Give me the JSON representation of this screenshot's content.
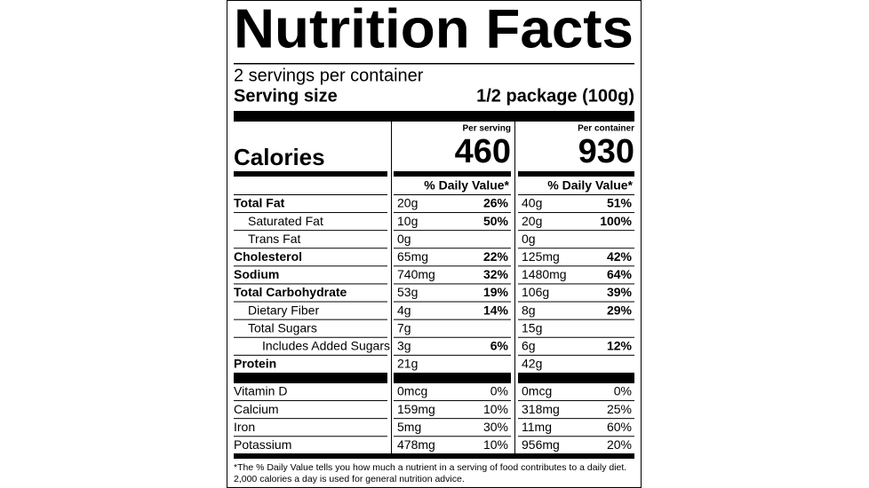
{
  "title": "Nutrition Facts",
  "servings": "2 servings per container",
  "serving_size": {
    "label": "Serving size",
    "value": "1/2 package (100g)"
  },
  "calories": {
    "label": "Calories",
    "columns": [
      {
        "header": "Per serving",
        "value": "460"
      },
      {
        "header": "Per container",
        "value": "930"
      }
    ]
  },
  "dv_header": "% Daily Value*",
  "nutrients": [
    {
      "name": "Total Fat",
      "bold": true,
      "indent": 0,
      "columns": [
        [
          "20g",
          "26%"
        ],
        [
          "40g",
          "51%"
        ]
      ]
    },
    {
      "name": "Saturated Fat",
      "bold": false,
      "indent": 1,
      "columns": [
        [
          "10g",
          "50%"
        ],
        [
          "20g",
          "100%"
        ]
      ]
    },
    {
      "name": "Trans Fat",
      "bold": false,
      "indent": 1,
      "columns": [
        [
          "0g"
        ],
        [
          "0g"
        ]
      ]
    },
    {
      "name": "Cholesterol",
      "bold": true,
      "indent": 0,
      "columns": [
        [
          "65mg",
          "22%"
        ],
        [
          "125mg",
          "42%"
        ]
      ]
    },
    {
      "name": "Sodium",
      "bold": true,
      "indent": 0,
      "columns": [
        [
          "740mg",
          "32%"
        ],
        [
          "1480mg",
          "64%"
        ]
      ]
    },
    {
      "name": "Total Carbohydrate",
      "bold": true,
      "indent": 0,
      "columns": [
        [
          "53g",
          "19%"
        ],
        [
          "106g",
          "39%"
        ]
      ]
    },
    {
      "name": "Dietary Fiber",
      "bold": false,
      "indent": 1,
      "columns": [
        [
          "4g",
          "14%"
        ],
        [
          "8g",
          "29%"
        ]
      ]
    },
    {
      "name": "Total Sugars",
      "bold": false,
      "indent": 1,
      "columns": [
        [
          "7g"
        ],
        [
          "15g"
        ]
      ]
    },
    {
      "name": "Includes Added Sugars",
      "bold": false,
      "indent": 2,
      "columns": [
        [
          "3g",
          "6%"
        ],
        [
          "6g",
          "12%"
        ]
      ]
    },
    {
      "name": "Protein",
      "bold": true,
      "indent": 0,
      "columns": [
        [
          "21g"
        ],
        [
          "42g"
        ]
      ]
    }
  ],
  "vitamins": [
    {
      "name": "Vitamin D",
      "columns": [
        [
          "0mcg",
          "0%"
        ],
        [
          "0mcg",
          "0%"
        ]
      ]
    },
    {
      "name": "Calcium",
      "columns": [
        [
          "159mg",
          "10%"
        ],
        [
          "318mg",
          "25%"
        ]
      ]
    },
    {
      "name": "Iron",
      "columns": [
        [
          "5mg",
          "30%"
        ],
        [
          "11mg",
          "60%"
        ]
      ]
    },
    {
      "name": "Potassium",
      "columns": [
        [
          "478mg",
          "10%"
        ],
        [
          "956mg",
          "20%"
        ]
      ]
    }
  ],
  "footnote": [
    "*The % Daily Value tells you how much a nutrient in a serving of food contributes to a daily diet.",
    "2,000 calories a day is used for general nutrition advice."
  ]
}
